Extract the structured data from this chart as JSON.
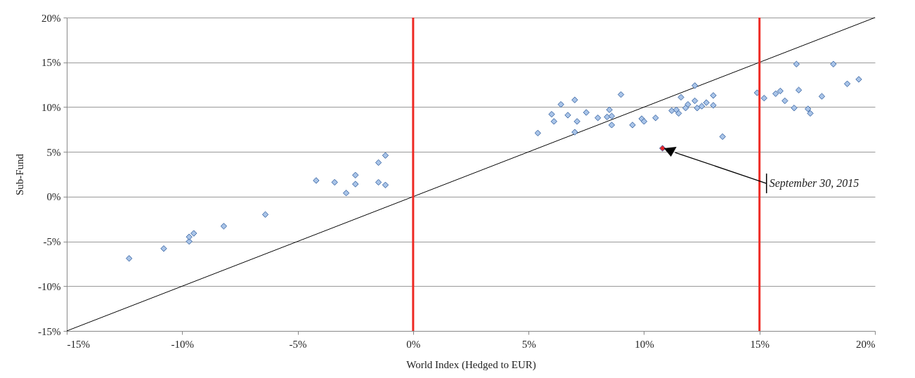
{
  "chart_data": {
    "type": "scatter",
    "xlabel": "World Index (Hedged to EUR)",
    "ylabel": "Sub-Fund",
    "grid": "y",
    "xlim": [
      -15,
      20
    ],
    "ylim": [
      -15,
      20
    ],
    "xticks": [
      {
        "value": -15,
        "label": "-15%"
      },
      {
        "value": -10,
        "label": "-10%"
      },
      {
        "value": -5,
        "label": "-5%"
      },
      {
        "value": 0,
        "label": "0%"
      },
      {
        "value": 5,
        "label": "5%"
      },
      {
        "value": 10,
        "label": "10%"
      },
      {
        "value": 15,
        "label": "15%"
      },
      {
        "value": 20,
        "label": "20%"
      }
    ],
    "yticks": [
      {
        "value": -15,
        "label": "-15%"
      },
      {
        "value": -10,
        "label": "-10%"
      },
      {
        "value": -5,
        "label": "-5%"
      },
      {
        "value": 0,
        "label": "0%"
      },
      {
        "value": 5,
        "label": "5%"
      },
      {
        "value": 10,
        "label": "10%"
      },
      {
        "value": 15,
        "label": "15%"
      },
      {
        "value": 20,
        "label": "20%"
      }
    ],
    "series": [
      {
        "type": "line",
        "color": "#000000",
        "x": [
          -15,
          20
        ],
        "values": [
          -15,
          20
        ]
      },
      {
        "color": "#a9c4e8",
        "marker": "diamond",
        "x": [
          -12.3,
          -10.8,
          -9.7,
          -9.7,
          -9.5,
          -8.2,
          -6.4,
          -4.2,
          -3.4,
          -2.9,
          -2.5,
          -2.5,
          -1.5,
          -1.5,
          -1.2,
          -1.2,
          5.4,
          6.0,
          6.1,
          6.4,
          6.7,
          7.0,
          7.0,
          7.1,
          7.5,
          8.0,
          8.4,
          8.5,
          8.6,
          8.6,
          9.0,
          9.5,
          9.9,
          10.0,
          10.5,
          11.2,
          11.4,
          11.5,
          11.6,
          11.8,
          11.9,
          12.2,
          12.2,
          12.3,
          12.5,
          12.7,
          13.0,
          13.0,
          13.4,
          14.9,
          15.2,
          15.7,
          15.9,
          16.1,
          16.5,
          16.6,
          16.7,
          17.1,
          17.2,
          17.7,
          18.2,
          18.8,
          19.3
        ],
        "values": [
          -6.9,
          -5.8,
          -5.0,
          -4.5,
          -4.1,
          -3.3,
          -2.0,
          1.8,
          1.6,
          0.4,
          2.4,
          1.4,
          1.6,
          3.8,
          1.3,
          4.6,
          7.1,
          9.2,
          8.4,
          10.3,
          9.1,
          10.8,
          7.2,
          8.4,
          9.4,
          8.8,
          8.9,
          9.7,
          9.0,
          8.0,
          11.4,
          8.0,
          8.7,
          8.4,
          8.8,
          9.6,
          9.7,
          9.3,
          11.1,
          9.9,
          10.3,
          12.4,
          10.7,
          9.9,
          10.1,
          10.5,
          11.3,
          10.2,
          6.7,
          11.6,
          11.0,
          11.5,
          11.8,
          10.7,
          9.9,
          14.8,
          11.9,
          9.8,
          9.3,
          11.2,
          14.8,
          12.6,
          13.1
        ]
      },
      {
        "color": "#e8262b",
        "marker": "diamond",
        "x": [
          10.8
        ],
        "values": [
          5.4
        ]
      }
    ],
    "ref_lines": [
      {
        "axis": "x",
        "value": 0,
        "color": "#ee2a24"
      },
      {
        "axis": "x",
        "value": 15,
        "color": "#ee2a24"
      }
    ],
    "annotations": [
      "September 30, 2015"
    ]
  }
}
